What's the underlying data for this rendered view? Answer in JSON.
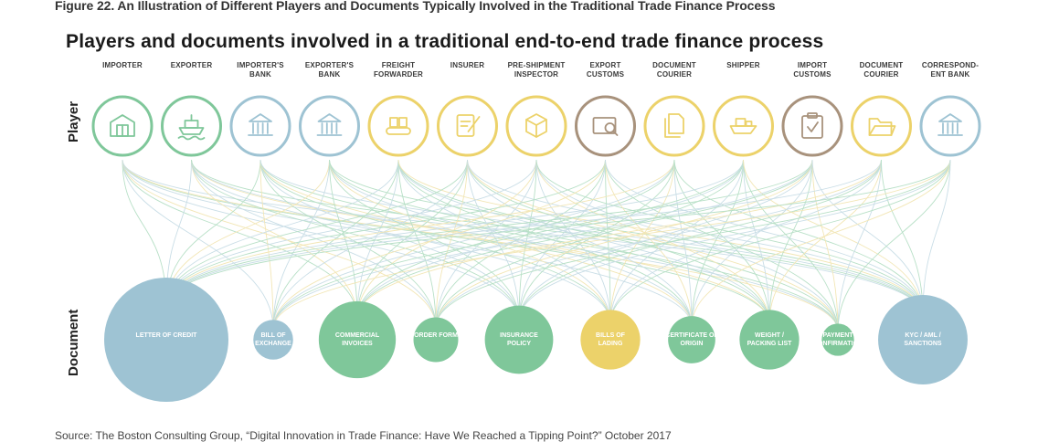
{
  "caption": "Figure 22. An Illustration of Different Players and Documents Typically Involved in the Traditional Trade Finance Process",
  "title": "Players and documents involved in a traditional end-to-end trade finance process",
  "row_labels": {
    "player": "Player",
    "document": "Document"
  },
  "source": "Source: The Boston Consulting Group, “Digital Innovation in Trade Finance: Have We Reached a Tipping Point?” October 2017",
  "colors": {
    "green": "#7fc79a",
    "blue": "#9ec3d3",
    "yellow": "#ecd26a",
    "brown": "#a8927c",
    "line_green": "#7fc79a",
    "line_blue": "#9ec3d3",
    "line_yellow": "#e8d27a"
  },
  "players": [
    {
      "label": "IMPORTER",
      "color": "green",
      "icon": "warehouse-icon"
    },
    {
      "label": "EXPORTER",
      "color": "green",
      "icon": "cargo-ship-icon"
    },
    {
      "label": "IMPORTER'S BANK",
      "color": "blue",
      "icon": "bank-icon"
    },
    {
      "label": "EXPORTER'S BANK",
      "color": "blue",
      "icon": "bank-icon"
    },
    {
      "label": "FREIGHT FORWARDER",
      "color": "yellow",
      "icon": "conveyor-icon"
    },
    {
      "label": "INSURER",
      "color": "yellow",
      "icon": "contract-pen-icon"
    },
    {
      "label": "PRE-SHIPMENT INSPECTOR",
      "color": "yellow",
      "icon": "open-box-icon"
    },
    {
      "label": "EXPORT CUSTOMS",
      "color": "brown",
      "icon": "inspection-screen-icon"
    },
    {
      "label": "DOCUMENT COURIER",
      "color": "yellow",
      "icon": "documents-icon"
    },
    {
      "label": "SHIPPER",
      "color": "yellow",
      "icon": "ship-icon"
    },
    {
      "label": "IMPORT CUSTOMS",
      "color": "brown",
      "icon": "clipboard-check-icon"
    },
    {
      "label": "DOCUMENT COURIER",
      "color": "yellow",
      "icon": "open-folder-icon"
    },
    {
      "label": "CORRESPOND-ENT BANK",
      "color": "blue",
      "icon": "bank-icon"
    }
  ],
  "documents": [
    {
      "label": "LETTER OF CREDIT",
      "color": "blue",
      "size": 1.0
    },
    {
      "label": "BILL OF EXCHANGE",
      "color": "blue",
      "size": 0.32
    },
    {
      "label": "COMMERCIAL INVOICES",
      "color": "green",
      "size": 0.62
    },
    {
      "label": "ORDER FORM",
      "color": "green",
      "size": 0.36
    },
    {
      "label": "INSURANCE POLICY",
      "color": "green",
      "size": 0.55
    },
    {
      "label": "BILLS OF LADING",
      "color": "yellow",
      "size": 0.48
    },
    {
      "label": "CERTIFICATE OF ORIGIN",
      "color": "green",
      "size": 0.38
    },
    {
      "label": "WEIGHT / PACKING LIST",
      "color": "green",
      "size": 0.48
    },
    {
      "label": "PAYMENT CONFIRMATION",
      "color": "green",
      "size": 0.26
    },
    {
      "label": "KYC / AML / SANCTIONS",
      "color": "blue",
      "size": 0.72
    }
  ]
}
